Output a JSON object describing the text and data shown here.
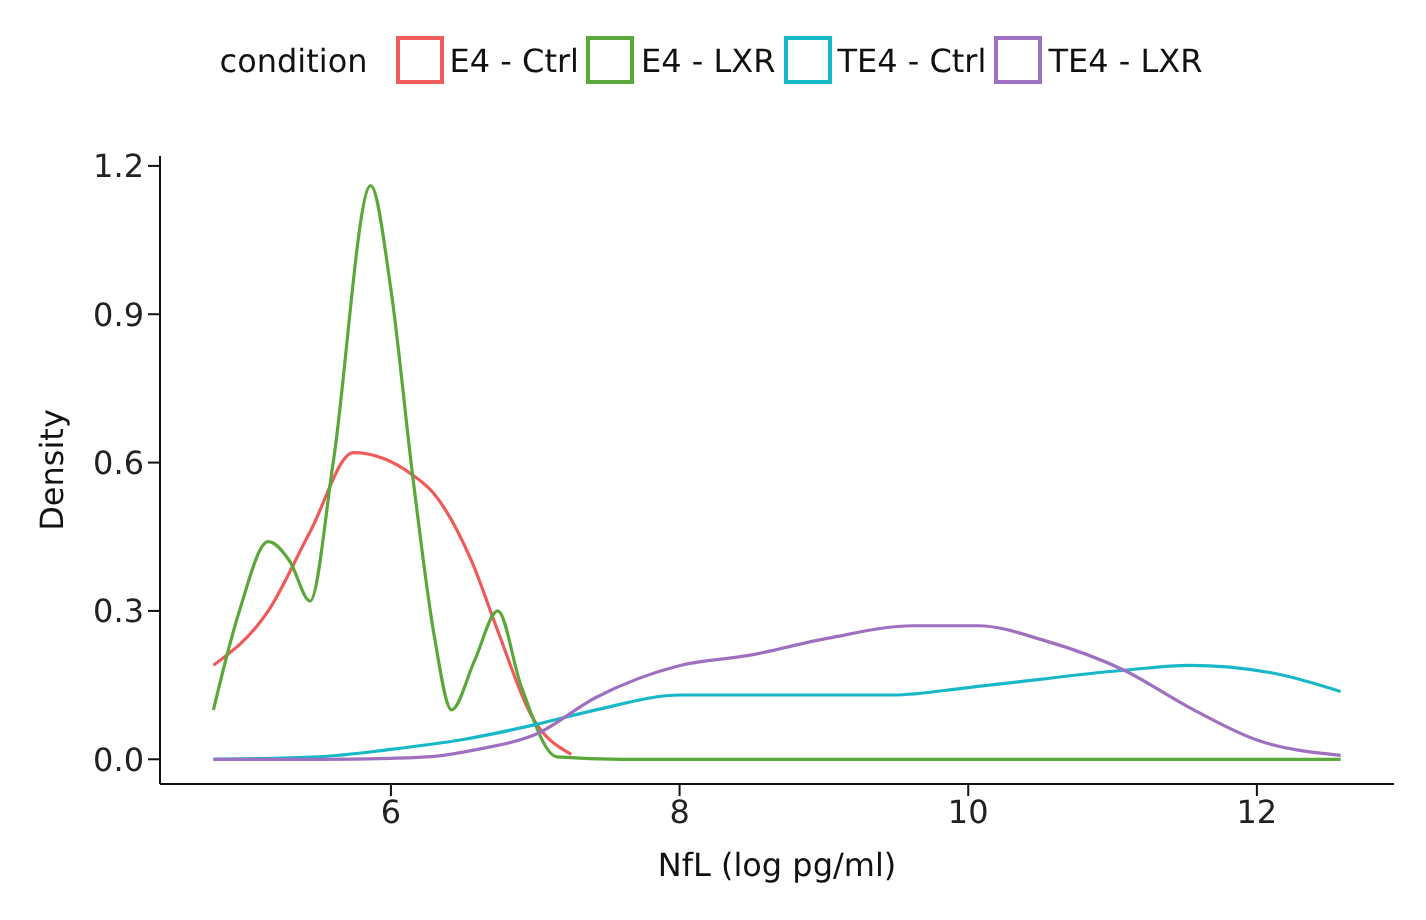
{
  "chart_data": {
    "type": "line",
    "xlabel": "NfL (log pg/ml)",
    "ylabel": "Density",
    "legend_title": "condition",
    "legend": "top",
    "grid": false,
    "xlim": [
      4.4,
      12.95
    ],
    "xticks": [
      6,
      8,
      10,
      12
    ],
    "ylim": [
      -0.05,
      1.22
    ],
    "yticks": [
      {
        "value": 0,
        "label": "0.0"
      },
      0.3,
      0.6,
      0.9,
      1.2
    ],
    "series": [
      {
        "name": "E4 - Ctrl",
        "color": "#f05a5a",
        "x": [
          4.77,
          5.15,
          5.44,
          5.74,
          6.15,
          6.29,
          6.56,
          6.74,
          6.97,
          7.25
        ],
        "values": [
          0.19,
          0.3,
          0.46,
          0.62,
          0.575,
          0.54,
          0.4,
          0.26,
          0.09,
          0.01
        ]
      },
      {
        "name": "E4 - LXR",
        "color": "#5aa83a",
        "x": [
          4.77,
          4.95,
          5.15,
          5.3,
          5.44,
          5.6,
          5.86,
          6.0,
          6.15,
          6.3,
          6.42,
          6.58,
          6.74,
          6.9,
          7.15,
          7.6,
          8,
          9,
          10,
          11,
          12,
          12.58
        ],
        "values": [
          0.1,
          0.3,
          0.44,
          0.4,
          0.32,
          0.6,
          1.16,
          0.95,
          0.575,
          0.25,
          0.1,
          0.2,
          0.3,
          0.15,
          0.005,
          0,
          0,
          0,
          0,
          0,
          0,
          0
        ]
      },
      {
        "name": "TE4 - Ctrl",
        "color": "#17b8c8",
        "x": [
          4.77,
          5.5,
          6,
          6.5,
          7,
          7.42,
          8.01,
          9.48,
          10,
          11.08,
          11.53,
          12.1,
          12.58
        ],
        "values": [
          0,
          0.005,
          0.02,
          0.04,
          0.07,
          0.1,
          0.13,
          0.13,
          0.145,
          0.18,
          0.19,
          0.175,
          0.137
        ]
      },
      {
        "name": "TE4 - LXR",
        "color": "#a070c0",
        "x": [
          4.77,
          5.5,
          6,
          6.3,
          6.6,
          7,
          7.42,
          8.01,
          8.48,
          9.03,
          9.62,
          10.07,
          10.53,
          11.08,
          11.53,
          11.99,
          12.58
        ],
        "values": [
          0,
          0,
          0.002,
          0.006,
          0.02,
          0.05,
          0.125,
          0.19,
          0.21,
          0.245,
          0.27,
          0.27,
          0.24,
          0.18,
          0.105,
          0.04,
          0.008
        ]
      }
    ]
  }
}
